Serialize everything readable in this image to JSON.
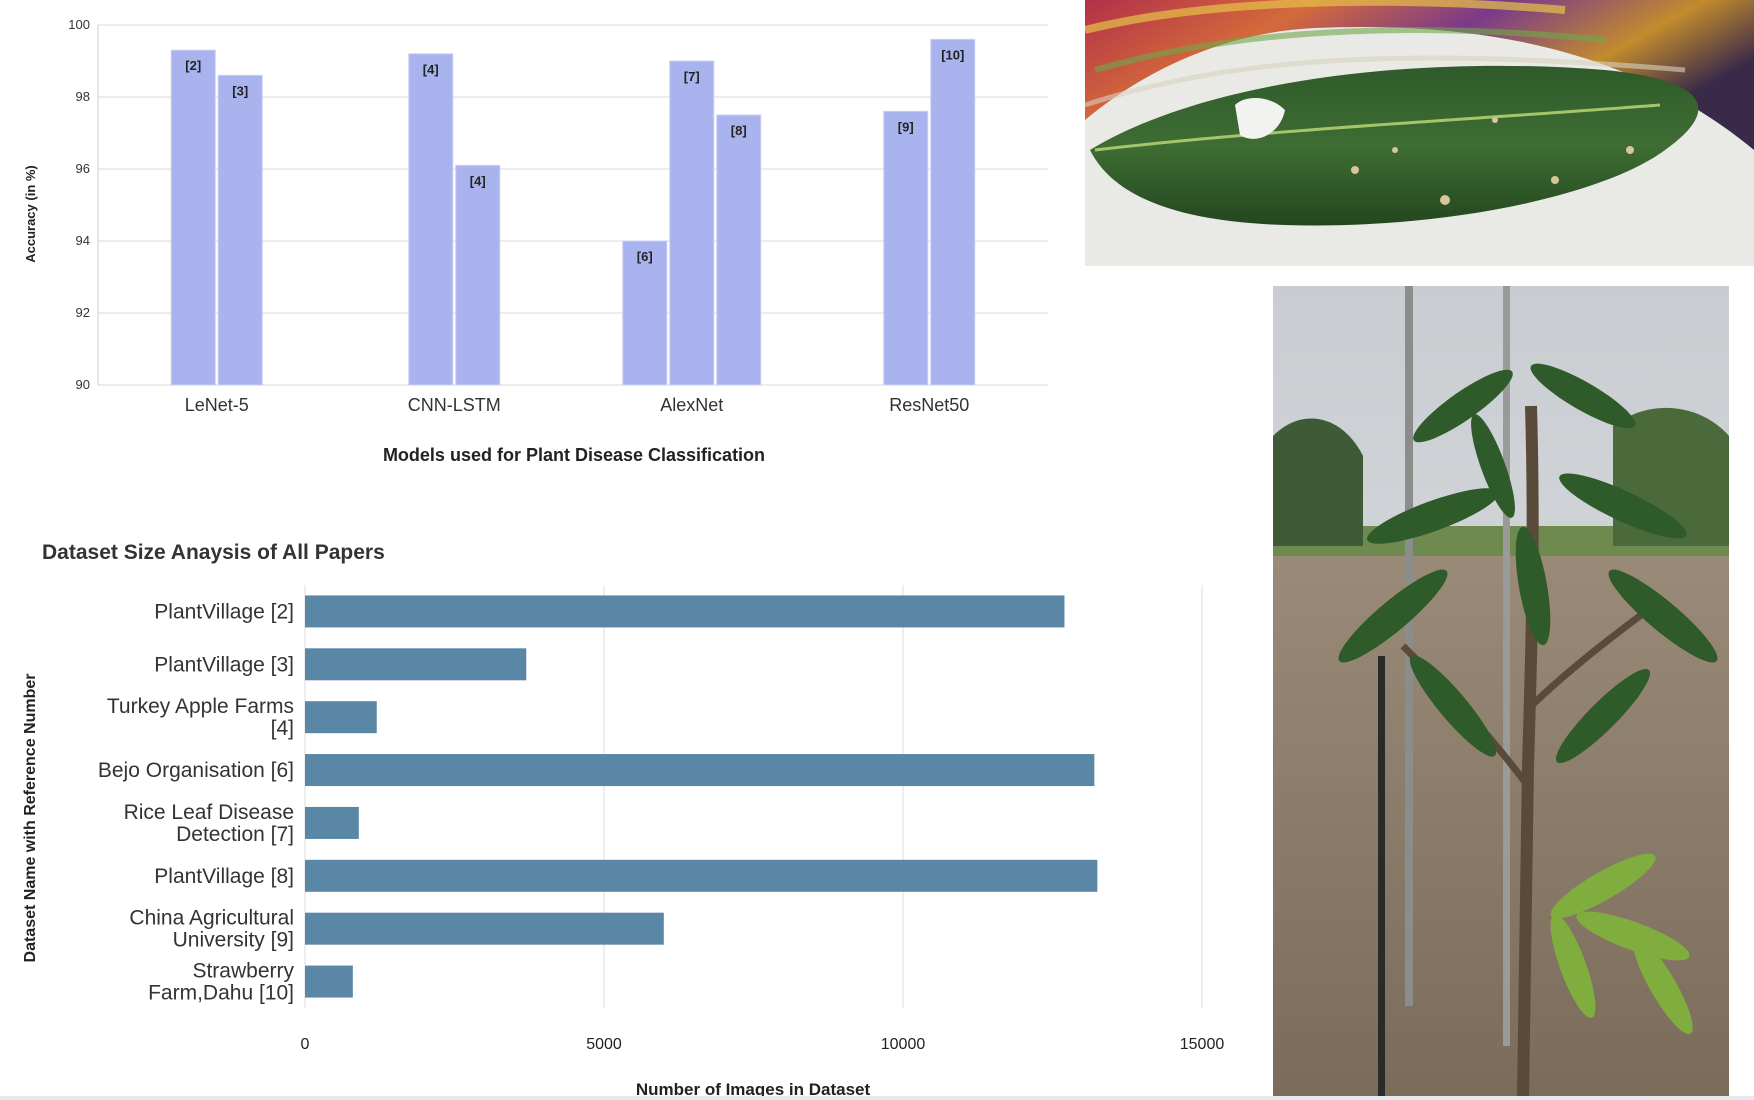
{
  "chart_data": [
    {
      "type": "bar",
      "title": "",
      "xlabel": "Models used for Plant Disease Classification",
      "ylabel": "Accuracy (in %)",
      "ylim": [
        90,
        100
      ],
      "yticks": [
        "100",
        "98",
        "96",
        "94",
        "92",
        "90"
      ],
      "grid": true,
      "groups": [
        {
          "model": "LeNet-5",
          "bars": [
            {
              "ref": "[2]",
              "value": 99.3
            },
            {
              "ref": "[3]",
              "value": 98.6
            }
          ]
        },
        {
          "model": "CNN-LSTM",
          "bars": [
            {
              "ref": "[4]",
              "value": 99.2
            },
            {
              "ref": "[4]",
              "value": 96.1
            }
          ]
        },
        {
          "model": "AlexNet",
          "bars": [
            {
              "ref": "[6]",
              "value": 94.0
            },
            {
              "ref": "[7]",
              "value": 99.0
            },
            {
              "ref": "[8]",
              "value": 97.5
            }
          ]
        },
        {
          "model": "ResNet50",
          "bars": [
            {
              "ref": "[9]",
              "value": 97.6
            },
            {
              "ref": "[10]",
              "value": 99.6
            }
          ]
        }
      ],
      "bar_color": "#a9b4ee"
    },
    {
      "type": "bar",
      "orientation": "horizontal",
      "title": "Dataset Size Anaysis of All Papers",
      "xlabel": "Number of Images in Dataset",
      "ylabel": "Dataset Name with Reference Number",
      "xlim": [
        0,
        15000
      ],
      "xticks": [
        "0",
        "5000",
        "10000",
        "15000"
      ],
      "grid": true,
      "categories": [
        [
          "PlantVillage [2]"
        ],
        [
          "PlantVillage [3]"
        ],
        [
          "Turkey Apple Farms",
          "[4]"
        ],
        [
          "Bejo Organisation [6]"
        ],
        [
          "Rice Leaf Disease",
          "Detection [7]"
        ],
        [
          "PlantVillage [8]"
        ],
        [
          "China Agricultural",
          "University [9]"
        ],
        [
          "Strawberry",
          "Farm,Dahu [10]"
        ]
      ],
      "values": [
        12700,
        3700,
        1200,
        13200,
        900,
        13250,
        6000,
        800
      ],
      "bar_color": "#5b87a7"
    }
  ],
  "photos": [
    {
      "subject": "mango-leaf-with-disease-spots"
    },
    {
      "subject": "young-mango-tree-in-field"
    }
  ]
}
